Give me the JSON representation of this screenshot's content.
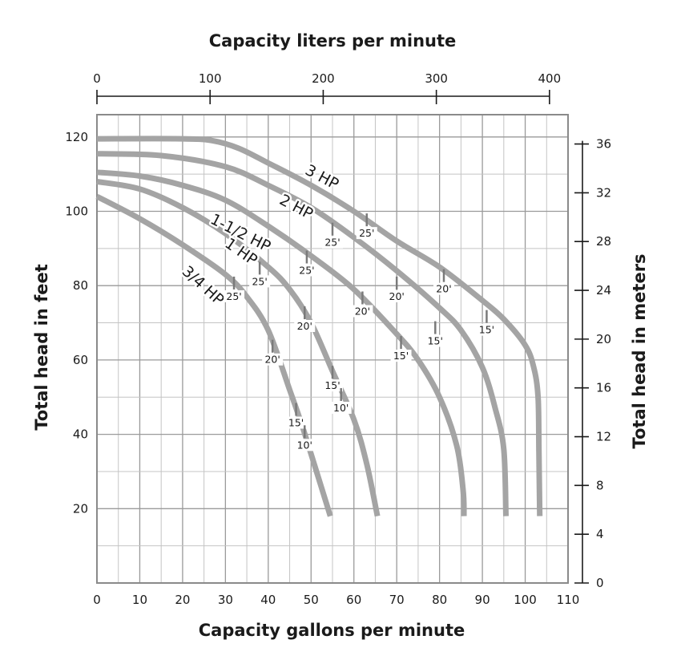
{
  "chart_data": {
    "type": "line",
    "title": "",
    "top_axis_title": "Capacity liters per minute",
    "bottom_axis_title": "Capacity gallons per minute",
    "left_axis_title": "Total head in feet",
    "right_axis_title": "Total head in meters",
    "x_gpm": {
      "range": [
        0,
        110
      ],
      "ticks": [
        0,
        10,
        20,
        30,
        40,
        50,
        60,
        70,
        80,
        90,
        100,
        110
      ]
    },
    "x_lpm": {
      "range": [
        0,
        400
      ],
      "ticks": [
        0,
        100,
        200,
        300,
        400
      ]
    },
    "y_feet": {
      "range": [
        0,
        126
      ],
      "ticks": [
        20,
        40,
        60,
        80,
        100,
        120
      ]
    },
    "y_meters": {
      "ticks": [
        0,
        4,
        8,
        12,
        16,
        20,
        24,
        28,
        32,
        36
      ]
    },
    "grid": true,
    "series": [
      {
        "name": "3 HP",
        "points": [
          [
            0,
            119.5
          ],
          [
            20,
            119.5
          ],
          [
            27,
            119
          ],
          [
            33,
            117
          ],
          [
            40,
            113
          ],
          [
            50,
            107
          ],
          [
            60,
            100
          ],
          [
            70,
            92
          ],
          [
            80,
            85
          ],
          [
            90,
            76
          ],
          [
            95,
            71
          ],
          [
            100,
            64
          ],
          [
            102,
            58
          ],
          [
            103,
            50
          ],
          [
            103.2,
            35
          ],
          [
            103.4,
            18
          ]
        ],
        "label_at": [
          52,
          108
        ],
        "label_rotation": 28,
        "markers": [
          {
            "x": 63,
            "y": 99,
            "text": "25'"
          },
          {
            "x": 81,
            "y": 84,
            "text": "20'"
          },
          {
            "x": 91,
            "y": 73,
            "text": "15'"
          }
        ]
      },
      {
        "name": "2 HP",
        "points": [
          [
            0,
            115.5
          ],
          [
            15,
            115
          ],
          [
            30,
            112
          ],
          [
            40,
            107
          ],
          [
            50,
            101
          ],
          [
            60,
            93
          ],
          [
            70,
            84
          ],
          [
            80,
            74
          ],
          [
            85,
            68
          ],
          [
            90,
            58
          ],
          [
            93,
            47
          ],
          [
            95,
            36
          ],
          [
            95.5,
            18
          ]
        ],
        "label_at": [
          46,
          100
        ],
        "label_rotation": 28,
        "markers": [
          {
            "x": 55,
            "y": 96.5,
            "text": "25'"
          },
          {
            "x": 70,
            "y": 82,
            "text": "20'"
          },
          {
            "x": 79,
            "y": 70,
            "text": "15'"
          }
        ]
      },
      {
        "name": "1-1/2 HP",
        "points": [
          [
            0,
            110.5
          ],
          [
            10,
            109.5
          ],
          [
            20,
            107
          ],
          [
            30,
            103
          ],
          [
            40,
            96
          ],
          [
            50,
            88
          ],
          [
            60,
            79
          ],
          [
            70,
            67
          ],
          [
            75,
            60
          ],
          [
            80,
            50
          ],
          [
            84,
            37
          ],
          [
            85.5,
            25
          ],
          [
            85.7,
            18
          ]
        ],
        "label_at": [
          33,
          93
        ],
        "label_rotation": 27,
        "markers": [
          {
            "x": 49,
            "y": 89,
            "text": "25'"
          },
          {
            "x": 62,
            "y": 78,
            "text": "20'"
          },
          {
            "x": 71,
            "y": 66,
            "text": "15'"
          }
        ]
      },
      {
        "name": "1 HP",
        "points": [
          [
            0,
            108
          ],
          [
            10,
            106
          ],
          [
            20,
            101
          ],
          [
            30,
            94
          ],
          [
            40,
            85
          ],
          [
            45,
            79
          ],
          [
            50,
            70
          ],
          [
            55,
            57
          ],
          [
            60,
            44
          ],
          [
            63,
            32
          ],
          [
            65.5,
            18
          ]
        ],
        "label_at": [
          33,
          88
        ],
        "label_rotation": 35,
        "markers": [
          {
            "x": 38,
            "y": 86,
            "text": "25'"
          },
          {
            "x": 48.5,
            "y": 74,
            "text": "20'"
          },
          {
            "x": 55,
            "y": 58,
            "text": "15'"
          },
          {
            "x": 57,
            "y": 52,
            "text": "10'"
          }
        ]
      },
      {
        "name": "3/4 HP",
        "points": [
          [
            0,
            104
          ],
          [
            10,
            98
          ],
          [
            20,
            91
          ],
          [
            30,
            83
          ],
          [
            35,
            77
          ],
          [
            40,
            68
          ],
          [
            45,
            52
          ],
          [
            48,
            42
          ],
          [
            51,
            31
          ],
          [
            54.5,
            18
          ]
        ],
        "label_at": [
          24,
          79
        ],
        "label_rotation": 42,
        "markers": [
          {
            "x": 32,
            "y": 82,
            "text": "25'"
          },
          {
            "x": 41,
            "y": 65,
            "text": "20'"
          },
          {
            "x": 46.5,
            "y": 48,
            "text": "15'"
          },
          {
            "x": 48.5,
            "y": 42,
            "text": "10'"
          }
        ]
      }
    ]
  }
}
